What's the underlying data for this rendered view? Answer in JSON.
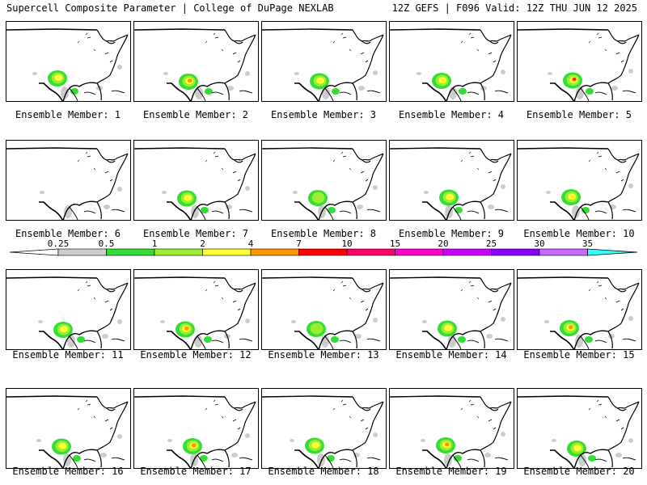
{
  "header": {
    "left": "Supercell Composite Parameter | College of DuPage NEXLAB",
    "right": "12Z GEFS | F096 Valid: 12Z THU JUN 12 2025"
  },
  "caption_prefix": "Ensemble Member:",
  "members": [
    1,
    2,
    3,
    4,
    5,
    6,
    7,
    8,
    9,
    10,
    11,
    12,
    13,
    14,
    15,
    16,
    17,
    18,
    19,
    20
  ],
  "member_intensity": [
    2,
    3,
    2,
    2,
    4,
    0,
    2,
    1,
    2,
    2,
    2,
    3,
    1,
    2,
    3,
    2,
    3,
    2,
    3,
    2
  ],
  "colorbar": {
    "labels": [
      "0.25",
      "0.5",
      "1",
      "2",
      "4",
      "7",
      "10",
      "15",
      "20",
      "25",
      "30",
      "35"
    ],
    "colors": [
      "#ffffff",
      "#cccccc",
      "#33dd33",
      "#99ee33",
      "#ffff33",
      "#ff9900",
      "#ff0000",
      "#ff0066",
      "#ff00cc",
      "#cc00ff",
      "#8800ff",
      "#cc66ff",
      "#33ffff"
    ]
  }
}
